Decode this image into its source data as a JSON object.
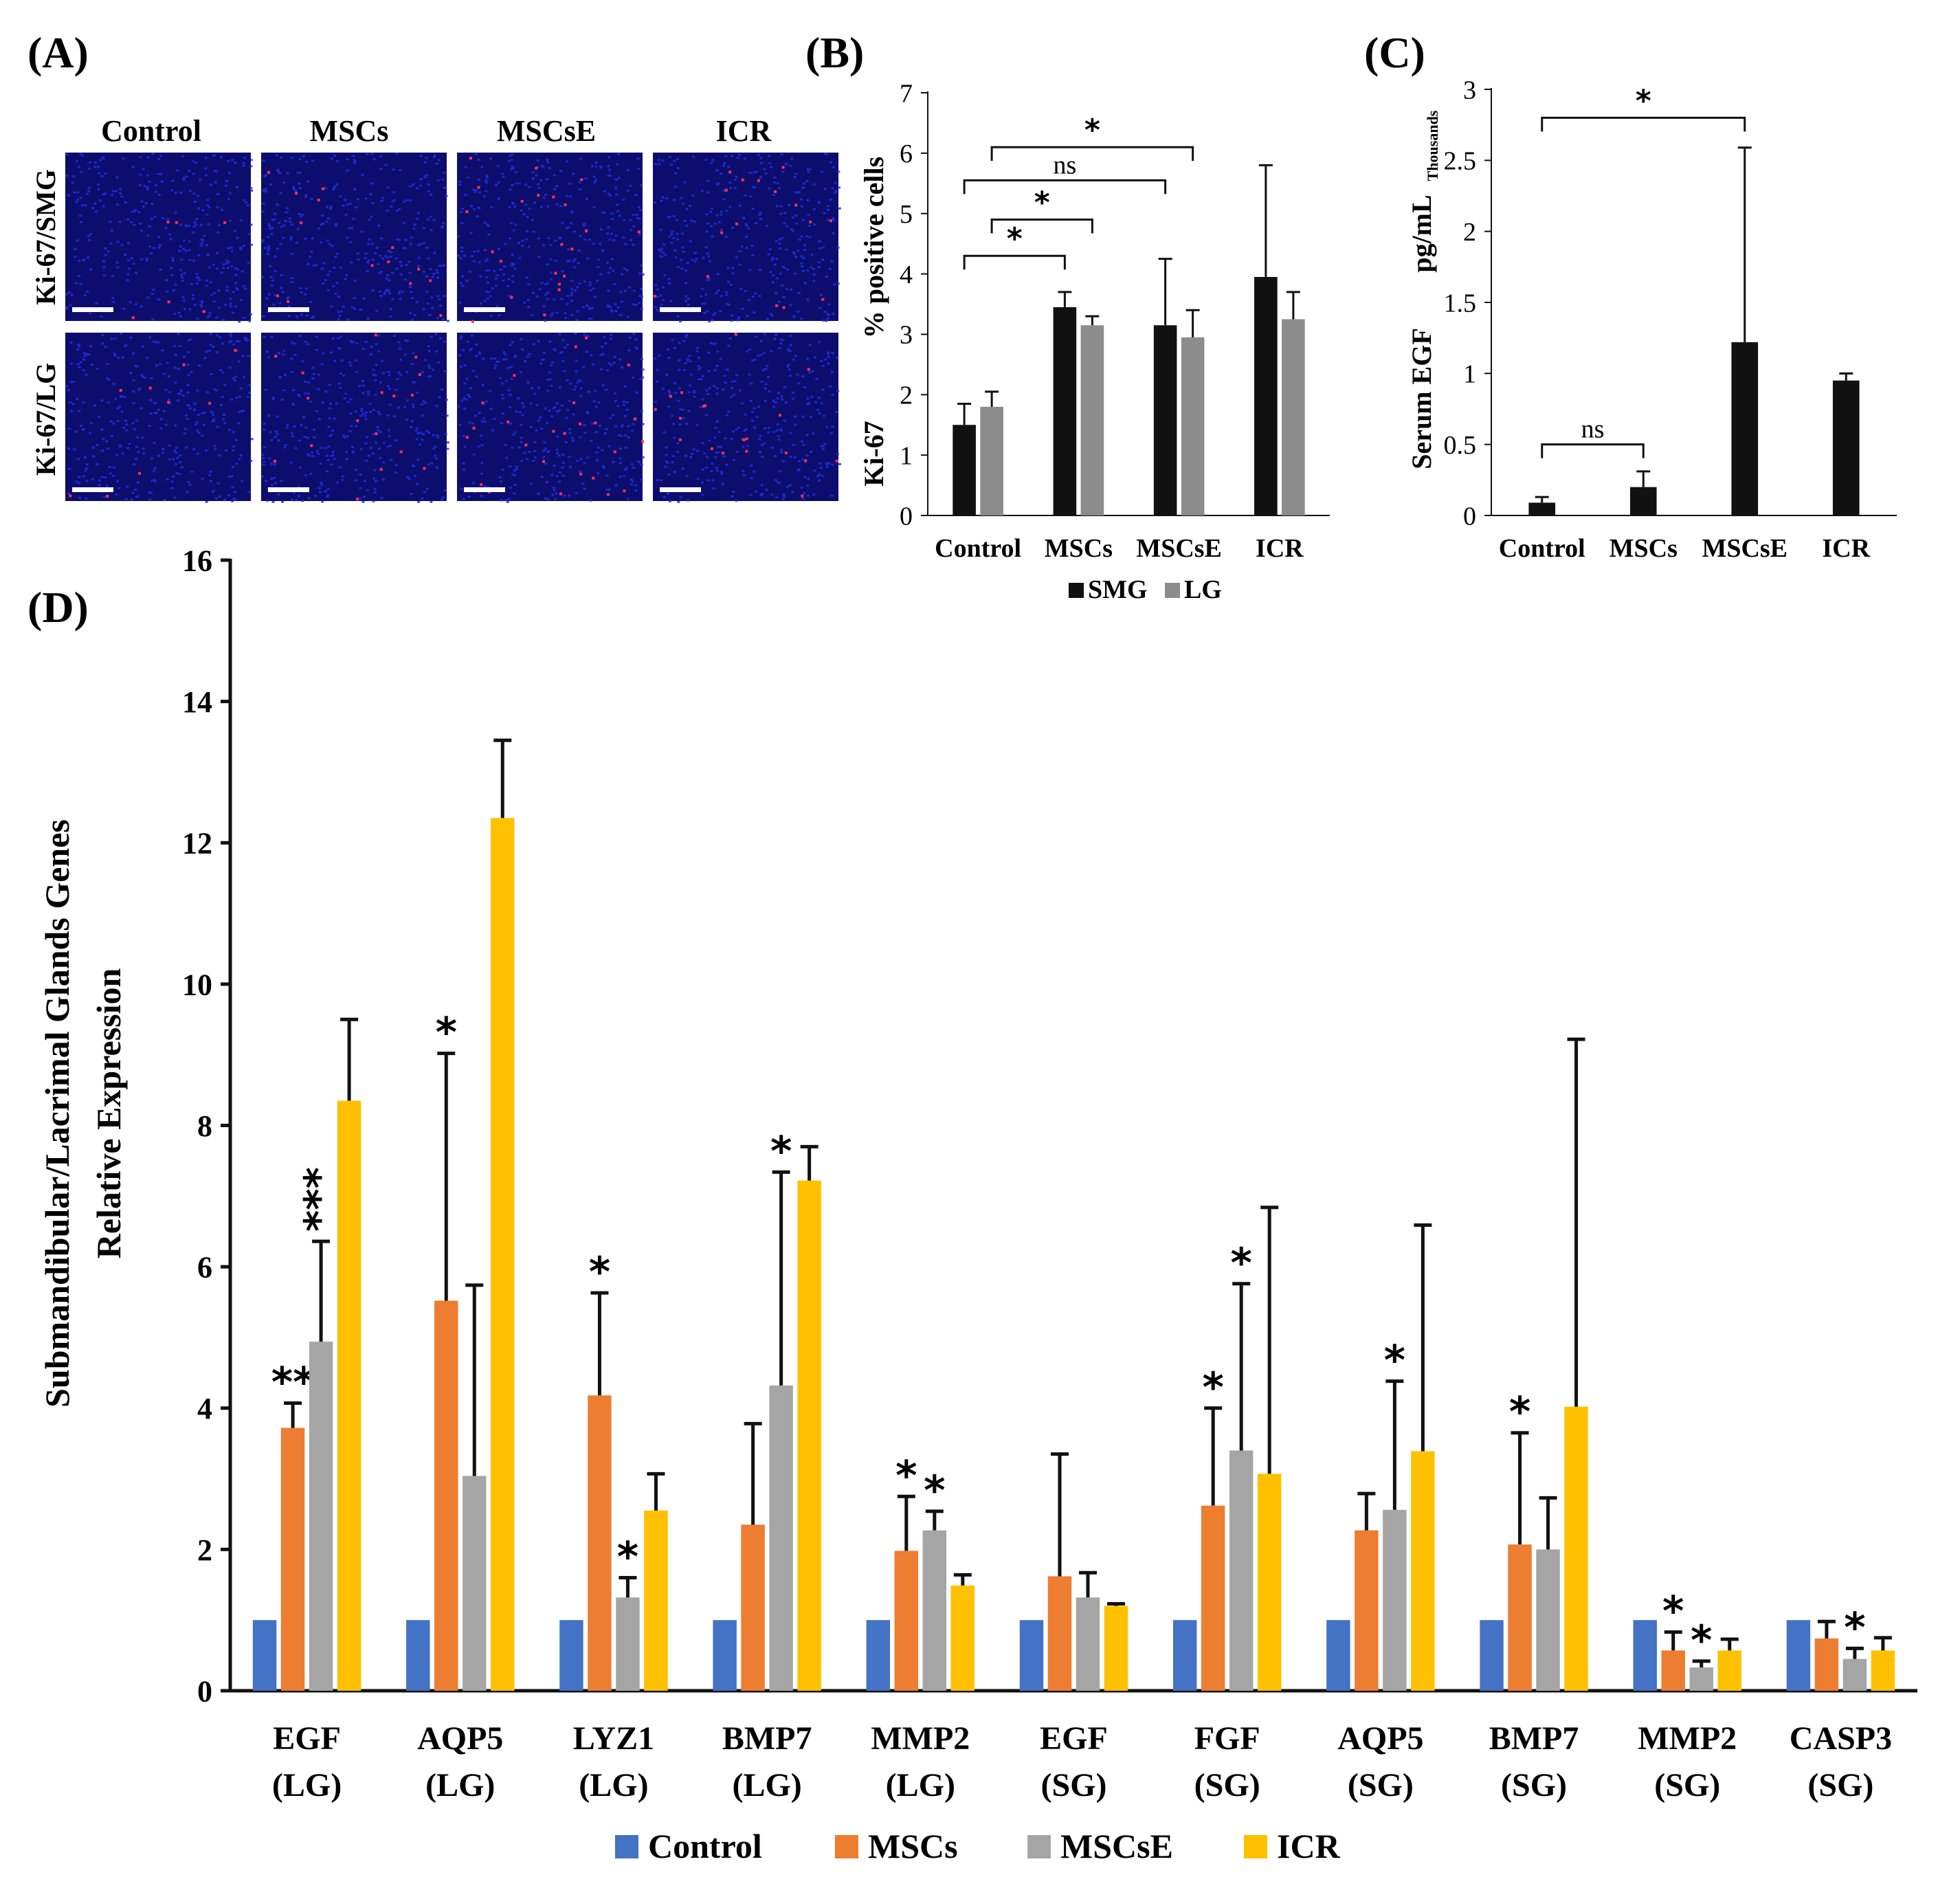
{
  "panel_labels": {
    "a": "(A)",
    "b": "(B)",
    "c": "(C)",
    "d": "(D)"
  },
  "micrographs": {
    "columns": [
      "Control",
      "MSCs",
      "MSCsE",
      "ICR"
    ],
    "rows": [
      "Ki-67/SMG",
      "Ki-67/LG"
    ],
    "colors": {
      "background": "#0d0d6e",
      "nuclei": "#1f2fe0",
      "stain": "#ff3050",
      "scale_bar": "#ffffff"
    }
  },
  "chart_data": [
    {
      "panel": "B",
      "type": "bar",
      "categories": [
        "Control",
        "MSCs",
        "MSCsE",
        "ICR"
      ],
      "series": [
        {
          "name": "SMG",
          "color": "#111111",
          "values": [
            1.5,
            3.45,
            3.15,
            3.95
          ],
          "errors": [
            0.35,
            0.25,
            1.1,
            1.85
          ]
        },
        {
          "name": "LG",
          "color": "#8c8c8c",
          "values": [
            1.8,
            3.15,
            2.95,
            3.25
          ],
          "errors": [
            0.25,
            0.15,
            0.45,
            0.45
          ]
        }
      ],
      "ylabel_lines": [
        "% positive cells",
        "Ki-67"
      ],
      "ylim": [
        0,
        7
      ],
      "yticks": [
        "0",
        "1",
        "2",
        "3",
        "4",
        "5",
        "6",
        "7"
      ],
      "brackets": [
        {
          "from": 0,
          "to": 1,
          "label": "*"
        },
        {
          "from": 0,
          "to": 1,
          "label": "*"
        },
        {
          "from": 0,
          "to": 2,
          "label": "ns"
        },
        {
          "from": 0,
          "to": 2,
          "label": "*"
        }
      ],
      "legend": "bottom"
    },
    {
      "panel": "C",
      "type": "bar",
      "categories": [
        "Control",
        "MSCs",
        "MSCsE",
        "ICR"
      ],
      "series": [
        {
          "name": "Serum EGF",
          "color": "#111111",
          "values": [
            0.09,
            0.2,
            1.22,
            0.95
          ],
          "errors": [
            0.04,
            0.11,
            1.37,
            0.05
          ]
        }
      ],
      "ylabel": "Serum EGF",
      "yunit": "pg/mL",
      "yunit_sub": "Thousands",
      "ylim": [
        0,
        3
      ],
      "yticks": [
        "0",
        "0.5",
        "1",
        "1.5",
        "2",
        "2.5",
        "3"
      ],
      "brackets": [
        {
          "from": 0,
          "to": 1,
          "label": "ns"
        },
        {
          "from": 0,
          "to": 2,
          "label": "*"
        }
      ]
    },
    {
      "panel": "D",
      "type": "bar",
      "categories": [
        [
          "EGF",
          "(LG)"
        ],
        [
          "AQP5",
          "(LG)"
        ],
        [
          "LYZ1",
          "(LG)"
        ],
        [
          "BMP7",
          "(LG)"
        ],
        [
          "MMP2",
          "(LG)"
        ],
        [
          "EGF",
          "(SG)"
        ],
        [
          "FGF",
          "(SG)"
        ],
        [
          "AQP5",
          "(SG)"
        ],
        [
          "BMP7",
          "(SG)"
        ],
        [
          "MMP2",
          "(SG)"
        ],
        [
          "CASP3",
          "(SG)"
        ]
      ],
      "series": [
        {
          "name": "Control",
          "color": "#4472c4",
          "values": [
            1,
            1,
            1,
            1,
            1,
            1,
            1,
            1,
            1,
            1,
            1
          ],
          "errors": [
            0,
            0,
            0,
            0,
            0,
            0,
            0,
            0,
            0,
            0,
            0
          ],
          "marks": [
            "",
            "",
            "",
            "",
            "",
            "",
            "",
            "",
            "",
            "",
            ""
          ]
        },
        {
          "name": "MSCs",
          "color": "#ed7d31",
          "values": [
            3.72,
            5.52,
            4.18,
            2.35,
            1.98,
            1.62,
            2.62,
            2.27,
            2.07,
            0.57,
            0.74
          ],
          "errors": [
            0.35,
            3.5,
            1.45,
            1.43,
            0.77,
            1.73,
            1.38,
            0.52,
            1.58,
            0.26,
            0.24
          ],
          "marks": [
            "**",
            "*",
            "*",
            "",
            "*",
            "",
            "*",
            "",
            "*",
            "*",
            ""
          ]
        },
        {
          "name": "MSCsE",
          "color": "#a5a5a5",
          "values": [
            4.94,
            3.04,
            1.32,
            4.32,
            2.27,
            1.32,
            3.4,
            2.56,
            2.0,
            0.33,
            0.45
          ],
          "errors": [
            1.42,
            2.7,
            0.28,
            3.02,
            0.27,
            0.35,
            2.36,
            1.82,
            0.73,
            0.09,
            0.15
          ],
          "marks": [
            "***",
            "",
            "*",
            "*",
            "*",
            "",
            "*",
            "*",
            "",
            "*",
            "*"
          ]
        },
        {
          "name": "ICR",
          "color": "#ffc000",
          "values": [
            8.35,
            12.35,
            2.55,
            7.22,
            1.49,
            1.2,
            3.07,
            3.39,
            4.02,
            0.57,
            0.57
          ],
          "errors": [
            1.15,
            1.1,
            0.52,
            0.48,
            0.15,
            0.03,
            3.77,
            3.2,
            5.2,
            0.16,
            0.18
          ],
          "marks": [
            "",
            "",
            "",
            "",
            "",
            "",
            "",
            "",
            "",
            "",
            ""
          ]
        }
      ],
      "ylabel_lines": [
        "Submandibular/Lacrimal Glands Genes",
        "Relative Expression"
      ],
      "ylim": [
        0,
        16
      ],
      "yticks": [
        "0",
        "2",
        "4",
        "6",
        "8",
        "10",
        "12",
        "14",
        "16"
      ],
      "legend": "bottom"
    }
  ]
}
